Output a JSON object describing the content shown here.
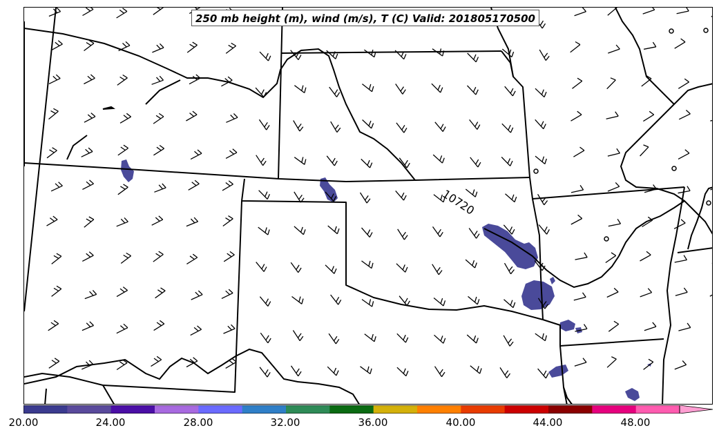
{
  "title": "250 mb height (m), wind (m/s), T (C) Valid: 201805170500",
  "contour_label": "10720",
  "colorbar": {
    "colors": [
      "#3b3b8f",
      "#5a4a9c",
      "#4b0fa6",
      "#a86ae0",
      "#6b6bff",
      "#2f7fc8",
      "#2e8b57",
      "#0a6b12",
      "#d4b10a",
      "#ff8000",
      "#e83c00",
      "#cc0000",
      "#8b0000",
      "#e6007e",
      "#ff5cb0",
      "#ff9ed2"
    ],
    "tick_labels": [
      "20.00",
      "24.00",
      "28.00",
      "32.00",
      "36.00",
      "40.00",
      "44.00",
      "48.00"
    ]
  }
}
